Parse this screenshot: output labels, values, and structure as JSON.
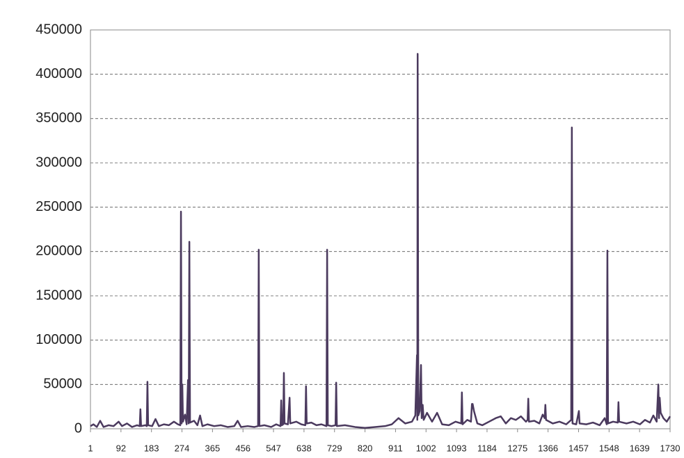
{
  "chart_data": {
    "type": "line",
    "color": "#4b3a5e",
    "grid": true,
    "xlim": [
      1,
      1730
    ],
    "xticks": [
      1,
      92,
      183,
      274,
      365,
      456,
      547,
      638,
      729,
      820,
      911,
      1002,
      1093,
      1184,
      1275,
      1366,
      1457,
      1548,
      1639,
      1730
    ],
    "ylim": [
      0,
      450000
    ],
    "yticks": [
      0,
      50000,
      100000,
      150000,
      200000,
      250000,
      300000,
      350000,
      400000,
      450000
    ],
    "x": [
      1,
      10,
      20,
      30,
      40,
      55,
      70,
      85,
      95,
      110,
      125,
      140,
      148,
      150,
      152,
      165,
      169,
      171,
      173,
      185,
      195,
      205,
      220,
      235,
      250,
      262,
      269,
      271,
      273,
      275,
      277,
      283,
      288,
      292,
      294,
      296,
      298,
      310,
      320,
      328,
      335,
      350,
      370,
      390,
      410,
      430,
      440,
      450,
      470,
      490,
      501,
      503,
      505,
      520,
      540,
      555,
      568,
      570,
      572,
      576,
      578,
      580,
      590,
      595,
      597,
      615,
      630,
      642,
      644,
      646,
      660,
      675,
      690,
      705,
      707,
      709,
      720,
      732,
      734,
      736,
      760,
      790,
      820,
      850,
      880,
      900,
      920,
      940,
      960,
      970,
      975,
      976,
      977,
      979,
      983,
      987,
      989,
      992,
      995,
      1005,
      1020,
      1035,
      1050,
      1070,
      1090,
      1107,
      1109,
      1111,
      1125,
      1136,
      1139,
      1141,
      1145,
      1155,
      1170,
      1190,
      1210,
      1225,
      1240,
      1255,
      1270,
      1285,
      1300,
      1305,
      1307,
      1309,
      1325,
      1340,
      1350,
      1356,
      1358,
      1360,
      1380,
      1400,
      1420,
      1435,
      1437,
      1439,
      1450,
      1458,
      1460,
      1480,
      1500,
      1520,
      1535,
      1541,
      1543,
      1545,
      1560,
      1574,
      1576,
      1578,
      1600,
      1620,
      1640,
      1655,
      1670,
      1680,
      1690,
      1695,
      1697,
      1699,
      1702,
      1710,
      1720,
      1730
    ],
    "values": [
      3000,
      5000,
      2000,
      9000,
      2000,
      4000,
      3000,
      8000,
      3000,
      6000,
      2000,
      4000,
      3000,
      22000,
      3000,
      4000,
      3000,
      53000,
      4000,
      3000,
      11000,
      3000,
      5000,
      4000,
      8000,
      5000,
      4000,
      245000,
      6000,
      50000,
      8000,
      16000,
      5000,
      55000,
      6000,
      211000,
      7000,
      9000,
      4000,
      15000,
      3000,
      5000,
      3000,
      4000,
      2000,
      3000,
      9000,
      2000,
      3000,
      2000,
      3000,
      202000,
      3000,
      4000,
      2000,
      5000,
      3000,
      32000,
      4000,
      5000,
      63000,
      6000,
      5000,
      35000,
      6000,
      8000,
      5000,
      4000,
      48000,
      6000,
      7000,
      4000,
      5000,
      3000,
      202000,
      4000,
      3000,
      4000,
      52000,
      3000,
      4000,
      2000,
      1000,
      2000,
      3000,
      5000,
      12000,
      6000,
      8000,
      15000,
      83000,
      10000,
      423000,
      15000,
      20000,
      72000,
      12000,
      27000,
      10000,
      18000,
      8000,
      18000,
      5000,
      4000,
      8000,
      6000,
      41000,
      5000,
      10000,
      8000,
      28000,
      28000,
      20000,
      6000,
      4000,
      8000,
      12000,
      14000,
      6000,
      12000,
      10000,
      14000,
      8000,
      10000,
      34000,
      8000,
      9000,
      6000,
      16000,
      12000,
      27000,
      10000,
      6000,
      8000,
      5000,
      10000,
      340000,
      6000,
      5000,
      20000,
      6000,
      5000,
      7000,
      4000,
      12000,
      5000,
      201000,
      6000,
      8000,
      7000,
      30000,
      8000,
      6000,
      8000,
      5000,
      10000,
      7000,
      15000,
      8000,
      50000,
      12000,
      35000,
      18000,
      12000,
      8000,
      14000
    ]
  }
}
